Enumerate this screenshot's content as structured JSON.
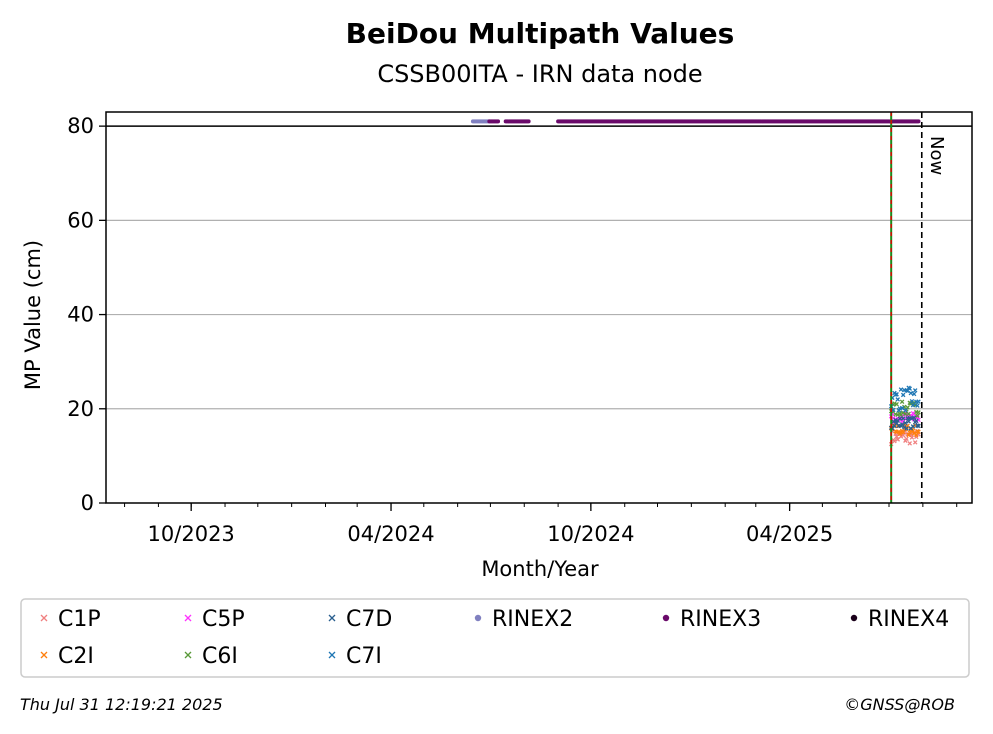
{
  "chart_data": {
    "type": "scatter",
    "title": "BeiDou Multipath Values",
    "subtitle": "CSSB00ITA - IRN data node",
    "xlabel": "Month/Year",
    "ylabel": "MP Value (cm)",
    "x_ticks": [
      "10/2023",
      "04/2024",
      "10/2024",
      "04/2025"
    ],
    "y_ticks": [
      "0",
      "20",
      "40",
      "60",
      "80"
    ],
    "xlim": [
      "2023-07-15",
      "2025-09-15"
    ],
    "ylim": [
      0,
      83
    ],
    "grid": "y",
    "now_label": "Now",
    "now_date": "2025-07-31",
    "marker_date": "2025-07-03",
    "rinex_level": 81,
    "series": [
      {
        "name": "C1P",
        "color": "#f08080",
        "marker": "x",
        "x_range": [
          "2025-07-03",
          "2025-07-28"
        ],
        "mean": 14,
        "spread": 1.5
      },
      {
        "name": "C2I",
        "color": "#ff7f0e",
        "marker": "x",
        "x_range": [
          "2025-07-03",
          "2025-07-28"
        ],
        "mean": 15.5,
        "spread": 1.2
      },
      {
        "name": "C5P",
        "color": "#ff33ff",
        "marker": "x",
        "x_range": [
          "2025-07-03",
          "2025-07-28"
        ],
        "mean": 18,
        "spread": 1.2
      },
      {
        "name": "C6I",
        "color": "#5a9a3a",
        "marker": "x",
        "x_range": [
          "2025-07-03",
          "2025-07-28"
        ],
        "mean": 20,
        "spread": 1.5
      },
      {
        "name": "C7D",
        "color": "#2a5f8f",
        "marker": "x",
        "x_range": [
          "2025-07-03",
          "2025-07-28"
        ],
        "mean": 17,
        "spread": 1.2
      },
      {
        "name": "C7I",
        "color": "#1f77b4",
        "marker": "x",
        "x_range": [
          "2025-07-03",
          "2025-07-28"
        ],
        "mean": 22,
        "spread": 2.5
      },
      {
        "name": "RINEX2",
        "color": "#8080c0",
        "marker": "dot",
        "x_range": [
          "2024-06-15",
          "2024-06-30"
        ],
        "y": 81
      },
      {
        "name": "RINEX3",
        "color": "#6a0a6a",
        "marker": "dot",
        "x_segments": [
          [
            "2024-06-30",
            "2024-07-08"
          ],
          [
            "2024-07-15",
            "2024-08-05"
          ],
          [
            "2024-09-01",
            "2025-07-28"
          ]
        ],
        "y": 81
      },
      {
        "name": "RINEX4",
        "color": "#1a001a",
        "marker": "dot",
        "x_range": [],
        "y": 81
      }
    ],
    "legend_placement": "bottom"
  },
  "footer": {
    "timestamp": "Thu Jul 31 12:19:21 2025",
    "credit": "©GNSS@ROB"
  }
}
